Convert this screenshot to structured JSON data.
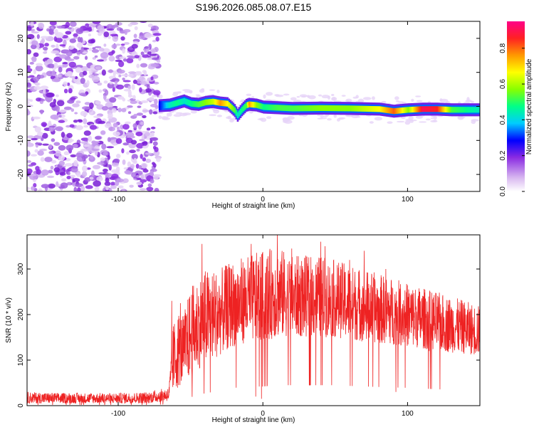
{
  "title": "S196.2026.085.08.07.E15",
  "colors": {
    "snr_line": "#ee2222",
    "frame": "#000000",
    "background": "#ffffff"
  },
  "chart_data": [
    {
      "type": "heatmap",
      "title": "S196.2026.085.08.07.E15",
      "xlabel": "Height of straight line (km)",
      "ylabel": "Frequency (Hz)",
      "xlim": [
        -163,
        150
      ],
      "ylim": [
        -25,
        25
      ],
      "x_ticks": [
        -100,
        0,
        100
      ],
      "x_tick_labels": [
        "-100",
        "0",
        "100"
      ],
      "y_ticks": [
        -20,
        -10,
        0,
        10,
        20
      ],
      "y_tick_labels": [
        "-20",
        "-10",
        "0",
        "10",
        "20"
      ],
      "noise_region": {
        "x_from": -163,
        "x_to": -72,
        "description_values": "scattered low-amplitude speckle across all frequencies"
      },
      "ridge": {
        "description_values": "spectral peak frequency vs height",
        "x": [
          -72,
          -65,
          -60,
          -55,
          -50,
          -45,
          -40,
          -35,
          -30,
          -25,
          -20,
          -18,
          -15,
          -12,
          -10,
          -5,
          0,
          10,
          20,
          40,
          60,
          80,
          90,
          100,
          110,
          120,
          130,
          140,
          150
        ],
        "freq": [
          0.2,
          0.4,
          1.0,
          1.6,
          0.8,
          0.6,
          1.2,
          1.4,
          1.0,
          0.8,
          -1.2,
          -2.6,
          -1.0,
          0.3,
          0.6,
          0.4,
          -0.2,
          -0.4,
          -0.6,
          -0.5,
          -0.6,
          -0.8,
          -1.4,
          -1.0,
          -0.8,
          -0.8,
          -1.0,
          -1.0,
          -1.0
        ],
        "amplitude": [
          0.3,
          0.45,
          0.5,
          0.45,
          0.5,
          0.55,
          0.6,
          0.65,
          0.8,
          0.7,
          0.55,
          0.45,
          0.5,
          0.55,
          0.8,
          0.6,
          0.5,
          0.55,
          0.55,
          0.6,
          0.6,
          0.7,
          0.85,
          0.6,
          0.95,
          0.9,
          0.55,
          0.5,
          0.45
        ]
      },
      "colorbar": {
        "label": "Normalized spectral amplitude",
        "range": [
          0,
          0.95
        ],
        "ticks": [
          0.0,
          0.2,
          0.4,
          0.6,
          0.8
        ],
        "tick_labels": [
          "0.0",
          "0.2",
          "0.4",
          "0.6",
          "0.8"
        ]
      }
    },
    {
      "type": "line",
      "xlabel": "Height of straight line (km)",
      "ylabel": "SNR (10 * v/v)",
      "xlim": [
        -163,
        150
      ],
      "ylim": [
        0,
        375
      ],
      "x_ticks": [
        -100,
        0,
        100
      ],
      "x_tick_labels": [
        "-100",
        "0",
        "100"
      ],
      "y_ticks": [
        0,
        100,
        200,
        300
      ],
      "y_tick_labels": [
        "0",
        "100",
        "200",
        "300"
      ],
      "series": [
        {
          "name": "SNR",
          "envelope_x": [
            -163,
            -140,
            -100,
            -80,
            -65,
            -62,
            -58,
            -55,
            -50,
            -45,
            -40,
            -30,
            -20,
            -10,
            0,
            10,
            20,
            40,
            50,
            70,
            100,
            120,
            150
          ],
          "envelope_low": [
            5,
            5,
            5,
            5,
            10,
            30,
            40,
            50,
            60,
            80,
            90,
            110,
            130,
            140,
            140,
            150,
            150,
            150,
            150,
            140,
            130,
            120,
            110
          ],
          "envelope_high": [
            30,
            28,
            28,
            30,
            40,
            180,
            210,
            200,
            260,
            280,
            300,
            300,
            320,
            330,
            340,
            350,
            330,
            330,
            320,
            300,
            270,
            250,
            220
          ],
          "spikes": [
            [
              -63,
              230
            ],
            [
              -57,
              225
            ],
            [
              -42,
              355
            ],
            [
              -22,
              300
            ],
            [
              -8,
              355
            ],
            [
              10,
              375
            ],
            [
              20,
              345
            ],
            [
              40,
              360
            ],
            [
              43,
              350
            ],
            [
              60,
              320
            ],
            [
              70,
              340
            ],
            [
              85,
              300
            ],
            [
              -1,
              15
            ],
            [
              -5,
              20
            ],
            [
              92,
              30
            ],
            [
              115,
              120
            ]
          ]
        }
      ]
    }
  ]
}
